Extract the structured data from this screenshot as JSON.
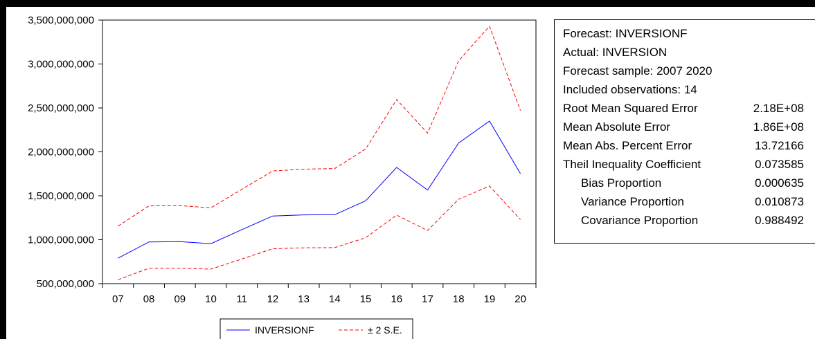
{
  "chart_data": {
    "type": "line",
    "categories": [
      "07",
      "08",
      "09",
      "10",
      "11",
      "12",
      "13",
      "14",
      "15",
      "16",
      "17",
      "18",
      "19",
      "20"
    ],
    "series": [
      {
        "name": "INVERSIONF",
        "color": "#0000ff",
        "style": "solid",
        "values": [
          790000000,
          975000000,
          978000000,
          955000000,
          1115000000,
          1270000000,
          1283000000,
          1285000000,
          1443000000,
          1823000000,
          1565000000,
          2100000000,
          2350000000,
          1752000000
        ]
      },
      {
        "name": "± 2 S.E.",
        "color": "#ff0000",
        "style": "dashed",
        "role": "upper",
        "values": [
          1155000000,
          1385000000,
          1388000000,
          1363000000,
          1573000000,
          1783000000,
          1803000000,
          1810000000,
          2033000000,
          2595000000,
          2213000000,
          3035000000,
          3430000000,
          2470000000
        ]
      },
      {
        "name": "± 2 S.E.",
        "color": "#ff0000",
        "style": "dashed",
        "role": "lower",
        "values": [
          545000000,
          675000000,
          676000000,
          665000000,
          780000000,
          898000000,
          908000000,
          910000000,
          1023000000,
          1280000000,
          1105000000,
          1460000000,
          1610000000,
          1230000000
        ]
      }
    ],
    "yticks": [
      "500,000,000",
      "1,000,000,000",
      "1,500,000,000",
      "2,000,000,000",
      "2,500,000,000",
      "3,000,000,000",
      "3,500,000,000"
    ],
    "ytick_values": [
      500000000,
      1000000000,
      1500000000,
      2000000000,
      2500000000,
      3000000000,
      3500000000
    ],
    "ylim": [
      500000000,
      3500000000
    ],
    "grid": false,
    "legend_position": "bottom-center",
    "legend": [
      {
        "label": "INVERSIONF",
        "color": "#0000ff",
        "style": "solid"
      },
      {
        "label": "± 2 S.E.",
        "color": "#ff0000",
        "style": "dashed"
      }
    ]
  },
  "stats": [
    {
      "label": "Forecast: INVERSIONF",
      "value": "",
      "indent": false
    },
    {
      "label": "Actual: INVERSION",
      "value": "",
      "indent": false
    },
    {
      "label": "Forecast sample: 2007 2020",
      "value": "",
      "indent": false
    },
    {
      "label": "Included observations: 14",
      "value": "",
      "indent": false
    },
    {
      "label": "Root Mean Squared Error",
      "value": "2.18E+08",
      "indent": false
    },
    {
      "label": "Mean Absolute Error",
      "value": "1.86E+08",
      "indent": false
    },
    {
      "label": "Mean Abs. Percent Error",
      "value": "13.72166",
      "indent": false
    },
    {
      "label": "Theil Inequality Coefficient",
      "value": "0.073585",
      "indent": false
    },
    {
      "label": "Bias Proportion",
      "value": "0.000635",
      "indent": true
    },
    {
      "label": "Variance Proportion",
      "value": "0.010873",
      "indent": true
    },
    {
      "label": "Covariance Proportion",
      "value": "0.988492",
      "indent": true
    }
  ]
}
